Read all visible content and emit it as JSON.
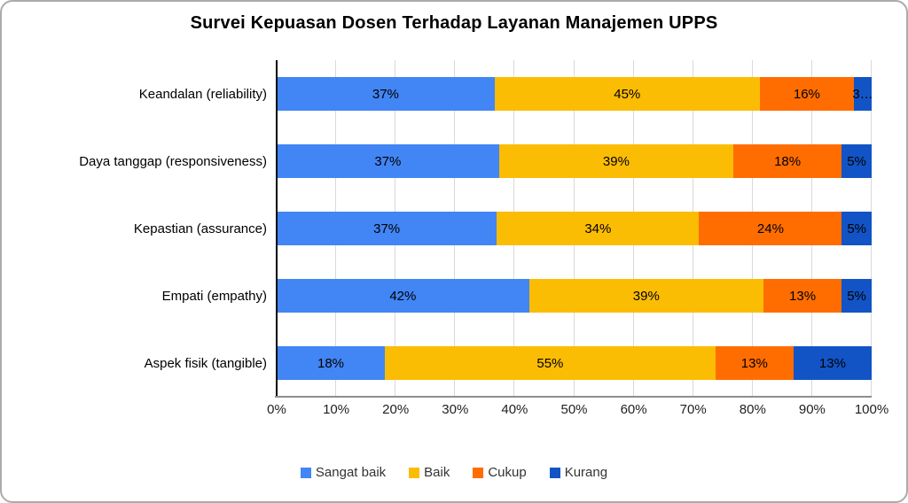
{
  "chart_data": {
    "type": "bar",
    "stacked": true,
    "orientation": "horizontal",
    "title": "Survei Kepuasan Dosen Terhadap Layanan Manajemen UPPS",
    "categories": [
      "Keandalan (reliability)",
      "Daya tanggap (responsiveness)",
      "Kepastian (assurance)",
      "Empati (empathy)",
      "Aspek fisik (tangible)"
    ],
    "series": [
      {
        "name": "Sangat baik",
        "color": "#4285F4",
        "values": [
          37,
          37,
          37,
          42,
          18
        ]
      },
      {
        "name": "Baik",
        "color": "#FBBC04",
        "values": [
          45,
          39,
          34,
          39,
          55
        ]
      },
      {
        "name": "Cukup",
        "color": "#FF6D01",
        "values": [
          16,
          18,
          24,
          13,
          13
        ]
      },
      {
        "name": "Kurang",
        "color": "#1254C5",
        "values": [
          3,
          5,
          5,
          5,
          13
        ]
      }
    ],
    "segment_labels": [
      [
        "37%",
        "45%",
        "16%",
        "3…"
      ],
      [
        "37%",
        "39%",
        "18%",
        "5%"
      ],
      [
        "37%",
        "34%",
        "24%",
        "5%"
      ],
      [
        "42%",
        "39%",
        "13%",
        "5%"
      ],
      [
        "18%",
        "55%",
        "13%",
        "13%"
      ]
    ],
    "x_ticks": [
      "0%",
      "10%",
      "20%",
      "30%",
      "40%",
      "50%",
      "60%",
      "70%",
      "80%",
      "90%",
      "100%"
    ],
    "xlim": [
      0,
      100
    ],
    "grid": true,
    "legend_position": "bottom"
  },
  "colors": {
    "gridline": "#D9D9D9",
    "y_axis": "#000000",
    "x_axis": "#8E8E8E",
    "border": "#ABABAB",
    "text": "#000000"
  }
}
